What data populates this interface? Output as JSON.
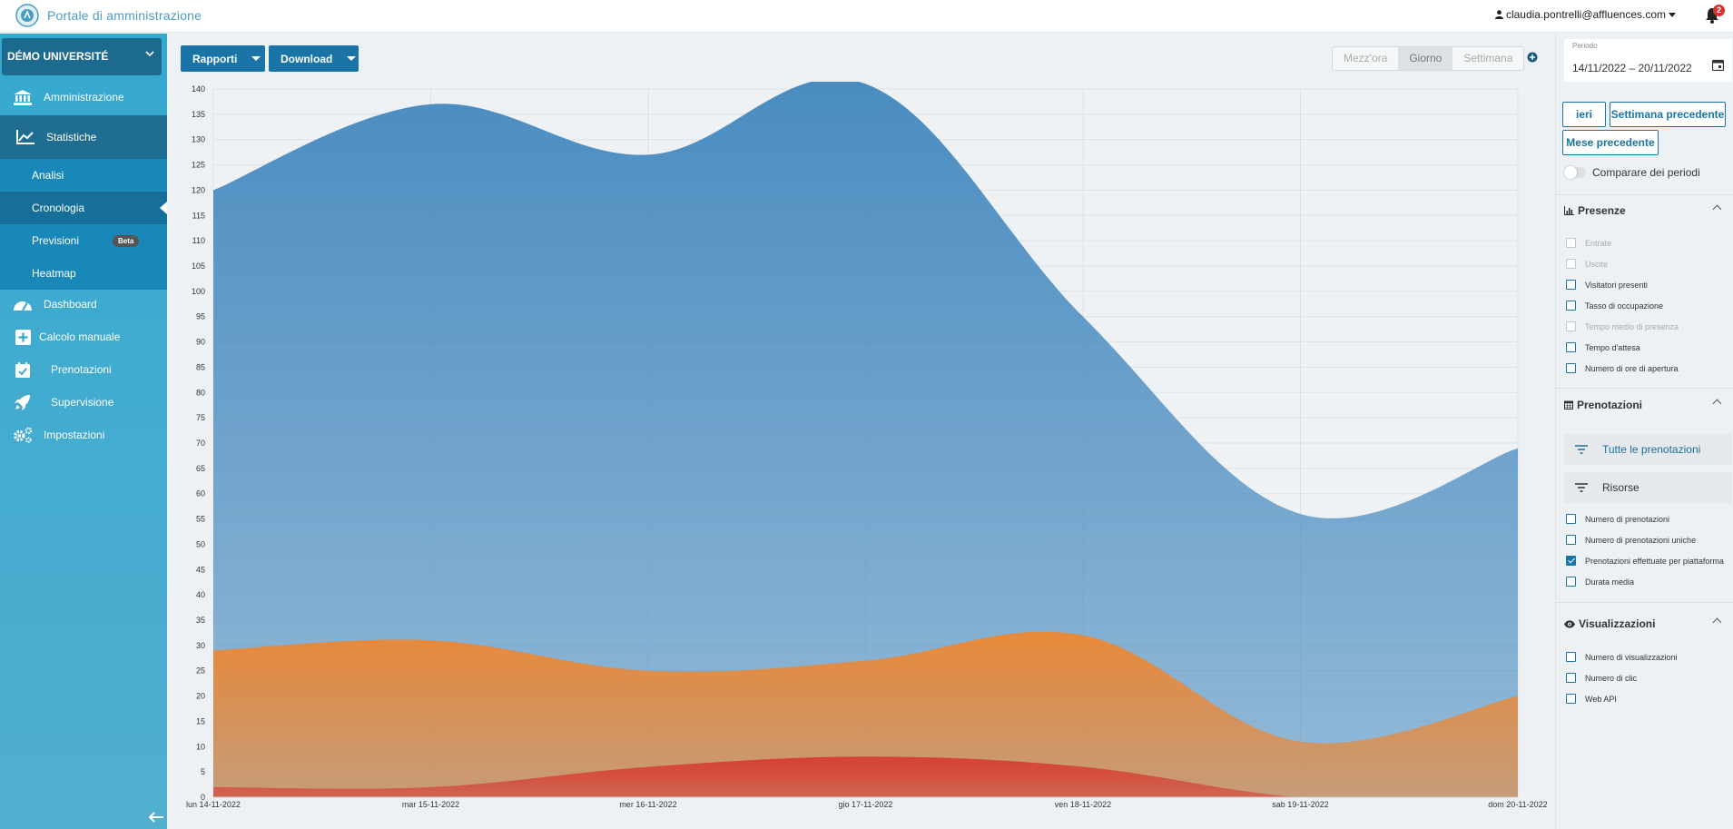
{
  "header": {
    "app_title": "Portale di amministrazione",
    "user_email": "claudia.pontrelli@affluences.com",
    "notification_count": "2"
  },
  "sidebar": {
    "org_name": "DÉMO UNIVERSITÉ",
    "items": [
      {
        "label": "Amministrazione",
        "icon": "bank-icon"
      },
      {
        "label": "Statistiche",
        "icon": "chart-line-icon"
      },
      {
        "label": "Dashboard",
        "icon": "gauge-icon"
      },
      {
        "label": "Calcolo manuale",
        "icon": "plus-square-icon"
      },
      {
        "label": "Prenotazioni",
        "icon": "calendar-check-icon"
      },
      {
        "label": "Supervisione",
        "icon": "rocket-icon"
      },
      {
        "label": "Impostazioni",
        "icon": "gears-icon"
      }
    ],
    "subitems": [
      {
        "label": "Analisi"
      },
      {
        "label": "Cronologia"
      },
      {
        "label": "Previsioni",
        "badge": "Beta"
      },
      {
        "label": "Heatmap"
      }
    ]
  },
  "toolbar": {
    "reports_label": "Rapporti",
    "download_label": "Download",
    "granularity": [
      "Mezz'ora",
      "Giorno",
      "Settimana"
    ],
    "selected_granularity": "Giorno"
  },
  "chart_data": {
    "type": "area",
    "stacked": false,
    "categories": [
      "lun 14-11-2022",
      "mar 15-11-2022",
      "mer 16-11-2022",
      "gio 17-11-2022",
      "ven 18-11-2022",
      "sab 19-11-2022",
      "dom 20-11-2022"
    ],
    "yticks": [
      0,
      5,
      10,
      15,
      20,
      25,
      30,
      35,
      40,
      45,
      50,
      55,
      60,
      65,
      70,
      75,
      80,
      85,
      90,
      95,
      100,
      105,
      110,
      115,
      120,
      125,
      130,
      135,
      140
    ],
    "ylim": [
      0,
      140
    ],
    "grid": true,
    "series": [
      {
        "values": [
          120,
          137,
          127,
          141,
          95,
          56,
          69
        ],
        "color": "#4a8cc0"
      },
      {
        "values": [
          29,
          31,
          25,
          27,
          32,
          11,
          20
        ],
        "color": "#e8893a"
      },
      {
        "values": [
          2,
          2,
          6,
          8,
          6,
          0,
          0
        ],
        "color": "#d64035"
      }
    ]
  },
  "right_panel": {
    "period_label": "Periodo",
    "period_value": "14/11/2022 – 20/11/2022",
    "btn_yesterday": "ieri",
    "btn_prev_week": "Settimana precedente",
    "btn_prev_month": "Mese precedente",
    "compare_label": "Comparare dei periodi",
    "presenze": {
      "title": "Presenze",
      "items": [
        {
          "label": "Entrate",
          "disabled": true
        },
        {
          "label": "Uscite",
          "disabled": true
        },
        {
          "label": "Visitatori presenti"
        },
        {
          "label": "Tasso di occupazione"
        },
        {
          "label": "Tempo medio di presenza",
          "disabled": true
        },
        {
          "label": "Tempo d'attesa"
        },
        {
          "label": "Numero di ore di apertura"
        }
      ]
    },
    "prenotazioni": {
      "title": "Prenotazioni",
      "filter_all": "Tutte le prenotazioni",
      "filter_resources": "Risorse",
      "items": [
        {
          "label": "Numero di prenotazioni"
        },
        {
          "label": "Numero di prenotazioni uniche"
        },
        {
          "label": "Prenotazioni effettuate per piattaforma",
          "checked": true
        },
        {
          "label": "Durata media"
        }
      ]
    },
    "visualizzazioni": {
      "title": "Visualizzazioni",
      "items": [
        {
          "label": "Numero di visualizzazioni"
        },
        {
          "label": "Numero di clic"
        },
        {
          "label": "Web API"
        }
      ]
    }
  }
}
